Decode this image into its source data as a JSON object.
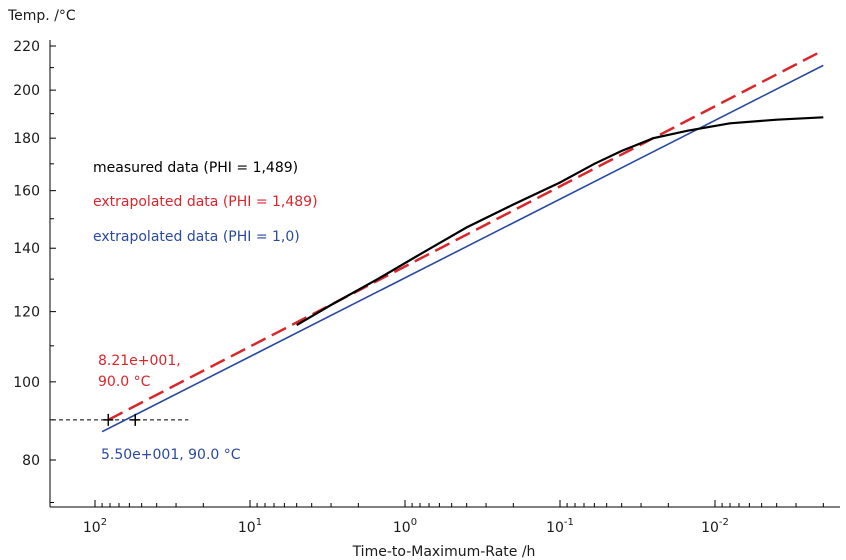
{
  "chart_data": {
    "type": "line",
    "xlabel": "Time-to-Maximum-Rate /h",
    "ylabel": "Temp. /°C",
    "x_scale": "log",
    "x_reversed": true,
    "xlim": [
      100,
      0.002
    ],
    "ylim": [
      70,
      220
    ],
    "y_scale": "reciprocal",
    "x_ticks": [
      {
        "value": 100,
        "base": "10",
        "exp": "2"
      },
      {
        "value": 10,
        "base": "10",
        "exp": "1"
      },
      {
        "value": 1,
        "base": "10",
        "exp": "0"
      },
      {
        "value": 0.1,
        "base": "10",
        "exp": "-1"
      },
      {
        "value": 0.01,
        "base": "10",
        "exp": "-2"
      }
    ],
    "y_ticks": [
      80,
      100,
      120,
      140,
      160,
      180,
      200,
      220
    ],
    "guide_line": {
      "y": 90,
      "x_from": 120,
      "x_to": 25
    },
    "series": [
      {
        "name": "measured data (PHI = 1,489)",
        "color": "#000000",
        "style": "solid",
        "points": [
          [
            5.0,
            116
          ],
          [
            3.0,
            122
          ],
          [
            1.5,
            130
          ],
          [
            0.8,
            138
          ],
          [
            0.4,
            147
          ],
          [
            0.2,
            155
          ],
          [
            0.1,
            163
          ],
          [
            0.06,
            170
          ],
          [
            0.04,
            175
          ],
          [
            0.025,
            180
          ],
          [
            0.015,
            183
          ],
          [
            0.008,
            186
          ],
          [
            0.004,
            187.5
          ],
          [
            0.002,
            188.5
          ]
        ]
      },
      {
        "name": "extrapolated data (PHI = 1,489)",
        "color": "#d9262c",
        "style": "dashed",
        "points": [
          [
            82.1,
            90
          ],
          [
            0.002,
            218
          ]
        ]
      },
      {
        "name": "extrapolated data (PHI = 1,0)",
        "color": "#2a4aa0",
        "style": "solid",
        "points": [
          [
            90,
            87
          ],
          [
            0.002,
            211
          ]
        ]
      }
    ],
    "markers": [
      {
        "x": 82.1,
        "y": 90
      },
      {
        "x": 55.0,
        "y": 90
      }
    ],
    "annotations": [
      {
        "text": "8.21e+001,",
        "color": "#d9262c"
      },
      {
        "text": "90.0 °C",
        "color": "#d9262c"
      },
      {
        "text": "5.50e+001, 90.0 °C",
        "color": "#2a4aa0"
      }
    ]
  }
}
